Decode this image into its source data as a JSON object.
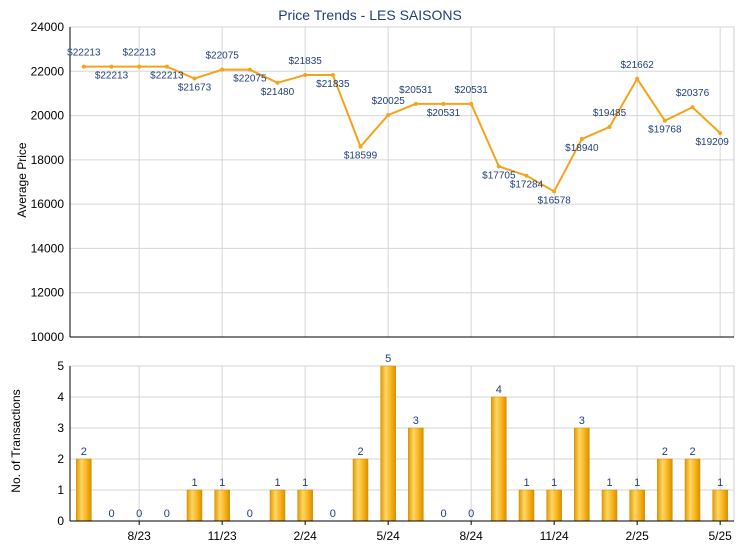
{
  "title": "Price Trends - LES SAISONS",
  "accent_line": "#f5a31a",
  "accent_bar": "#f0a800",
  "chart_data": [
    {
      "type": "line",
      "ylabel": "Average Price",
      "ylim": [
        10000,
        24000
      ],
      "yticks": [
        10000,
        12000,
        14000,
        16000,
        18000,
        20000,
        22000,
        24000
      ],
      "grid": true,
      "series": [
        {
          "values": [
            22213,
            22213,
            22213,
            22213,
            21673,
            22075,
            22075,
            21480,
            21835,
            21835,
            18599,
            20025,
            20531,
            20531,
            20531,
            17705,
            17284,
            16578,
            18940,
            19485,
            21662,
            19768,
            20376,
            19209
          ],
          "labels": [
            "$22213",
            "$22213",
            "$22213",
            "$22213",
            "$21673",
            "$22075",
            "$22075",
            "$21480",
            "$21835",
            "$21835",
            "$18599",
            "$20025",
            "$20531",
            "$20531",
            "$20531",
            "$17705",
            "$17284",
            "$16578",
            "$18940",
            "$19485",
            "$21662",
            "$19768",
            "$20376",
            "$19209"
          ]
        }
      ]
    },
    {
      "type": "bar",
      "ylabel": "No. of Transactions",
      "ylim": [
        0,
        5
      ],
      "yticks": [
        0,
        1,
        2,
        3,
        4,
        5
      ],
      "grid": true,
      "values": [
        2,
        0,
        0,
        0,
        1,
        1,
        0,
        1,
        1,
        0,
        2,
        5,
        3,
        0,
        0,
        4,
        1,
        1,
        3,
        1,
        1,
        2,
        2,
        1
      ],
      "xticks": [
        {
          "index": 2,
          "label": "8/23"
        },
        {
          "index": 5,
          "label": "11/23"
        },
        {
          "index": 8,
          "label": "2/24"
        },
        {
          "index": 11,
          "label": "5/24"
        },
        {
          "index": 14,
          "label": "8/24"
        },
        {
          "index": 17,
          "label": "11/24"
        },
        {
          "index": 20,
          "label": "2/25"
        },
        {
          "index": 23,
          "label": "5/25"
        }
      ]
    }
  ]
}
